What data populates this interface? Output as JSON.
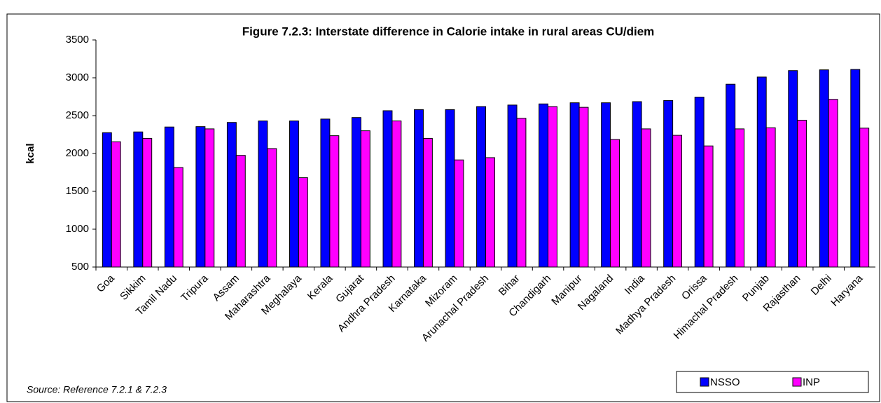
{
  "chart_data": {
    "type": "bar",
    "title": "Figure 7.2.3: Interstate difference in Calorie intake in rural areas CU/diem",
    "y_label": "kcal",
    "source": "Source: Reference 7.2.1 & 7.2.3",
    "categories": [
      "Goa",
      "Sikkim",
      "Tamil Nadu",
      "Tripura",
      "Assam",
      "Maharashtra",
      "Meghalaya",
      "Kerala",
      "Gujarat",
      "Andhra Pradesh",
      "Karnataka",
      "Mizoram",
      "Arunachal Pradesh",
      "Bihar",
      "Chandigarh",
      "Manipur",
      "Nagaland",
      "India",
      "Madhya Pradesh",
      "Orissa",
      "Himachal Pradesh",
      "Punjab",
      "Rajasthan",
      "Delhi",
      "Haryana"
    ],
    "series": [
      {
        "name": "NSSO",
        "color": "#0000ff",
        "values": [
          2275,
          2285,
          2350,
          2355,
          2410,
          2430,
          2430,
          2455,
          2475,
          2565,
          2580,
          2580,
          2620,
          2640,
          2655,
          2670,
          2670,
          2685,
          2700,
          2745,
          2915,
          3010,
          3095,
          3105,
          3110
        ]
      },
      {
        "name": "INP",
        "color": "#ff00ff",
        "values": [
          2155,
          2200,
          1815,
          2325,
          1975,
          2065,
          1680,
          2235,
          2300,
          2430,
          2200,
          1915,
          1945,
          2465,
          2620,
          2610,
          2185,
          2325,
          2240,
          2100,
          2325,
          2340,
          2440,
          2715,
          2335
        ]
      }
    ],
    "ylim": [
      500,
      3500
    ],
    "yticks": [
      500,
      1000,
      1500,
      2000,
      2500,
      3000,
      3500
    ],
    "grid": false,
    "legend": "bottom-right"
  }
}
